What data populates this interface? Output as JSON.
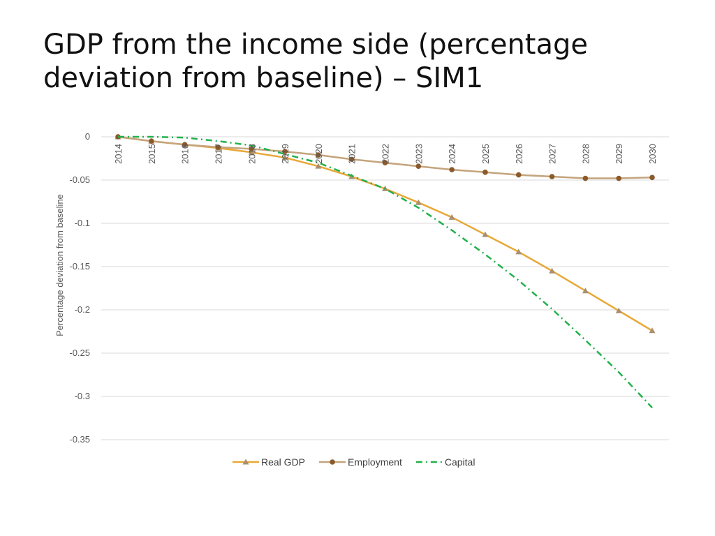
{
  "slide": {
    "title_line1": "GDP from the income side (percentage",
    "title_line2": "deviation from baseline) – SIM1"
  },
  "chart_data": {
    "type": "line",
    "ylabel": "Percentage deviation from baseline",
    "xlabel": "",
    "x": [
      "2014",
      "2015",
      "2016",
      "2017",
      "2018",
      "2019",
      "2020",
      "2021",
      "2022",
      "2023",
      "2024",
      "2025",
      "2026",
      "2027",
      "2028",
      "2029",
      "2030"
    ],
    "ylim": [
      -0.35,
      0
    ],
    "yticks": [
      0,
      -0.05,
      -0.1,
      -0.15,
      -0.2,
      -0.25,
      -0.3,
      -0.35
    ],
    "ytick_labels": [
      "0",
      "-0.05",
      "-0.1",
      "-0.15",
      "-0.2",
      "-0.25",
      "-0.3",
      "-0.35"
    ],
    "grid": "horizontal",
    "legend": "bottom",
    "series": [
      {
        "name": "Real GDP",
        "color": "#E8A838",
        "marker": "triangle",
        "marker_color": "#A89070",
        "style": "solid",
        "values": [
          0,
          -0.005,
          -0.009,
          -0.013,
          -0.018,
          -0.024,
          -0.034,
          -0.046,
          -0.06,
          -0.076,
          -0.093,
          -0.113,
          -0.133,
          -0.155,
          -0.178,
          -0.201,
          -0.224
        ]
      },
      {
        "name": "Employment",
        "color": "#C4A47C",
        "marker": "circle",
        "marker_color": "#8B5A2B",
        "style": "solid",
        "values": [
          0,
          -0.005,
          -0.009,
          -0.012,
          -0.014,
          -0.017,
          -0.021,
          -0.026,
          -0.03,
          -0.034,
          -0.038,
          -0.041,
          -0.044,
          -0.046,
          -0.048,
          -0.048,
          -0.047
        ]
      },
      {
        "name": "Capital",
        "color": "#22B04B",
        "marker": "none",
        "style": "dashdot",
        "values": [
          0,
          0,
          -0.001,
          -0.005,
          -0.01,
          -0.02,
          -0.03,
          -0.045,
          -0.06,
          -0.082,
          -0.108,
          -0.136,
          -0.166,
          -0.199,
          -0.235,
          -0.272,
          -0.313
        ]
      }
    ]
  }
}
